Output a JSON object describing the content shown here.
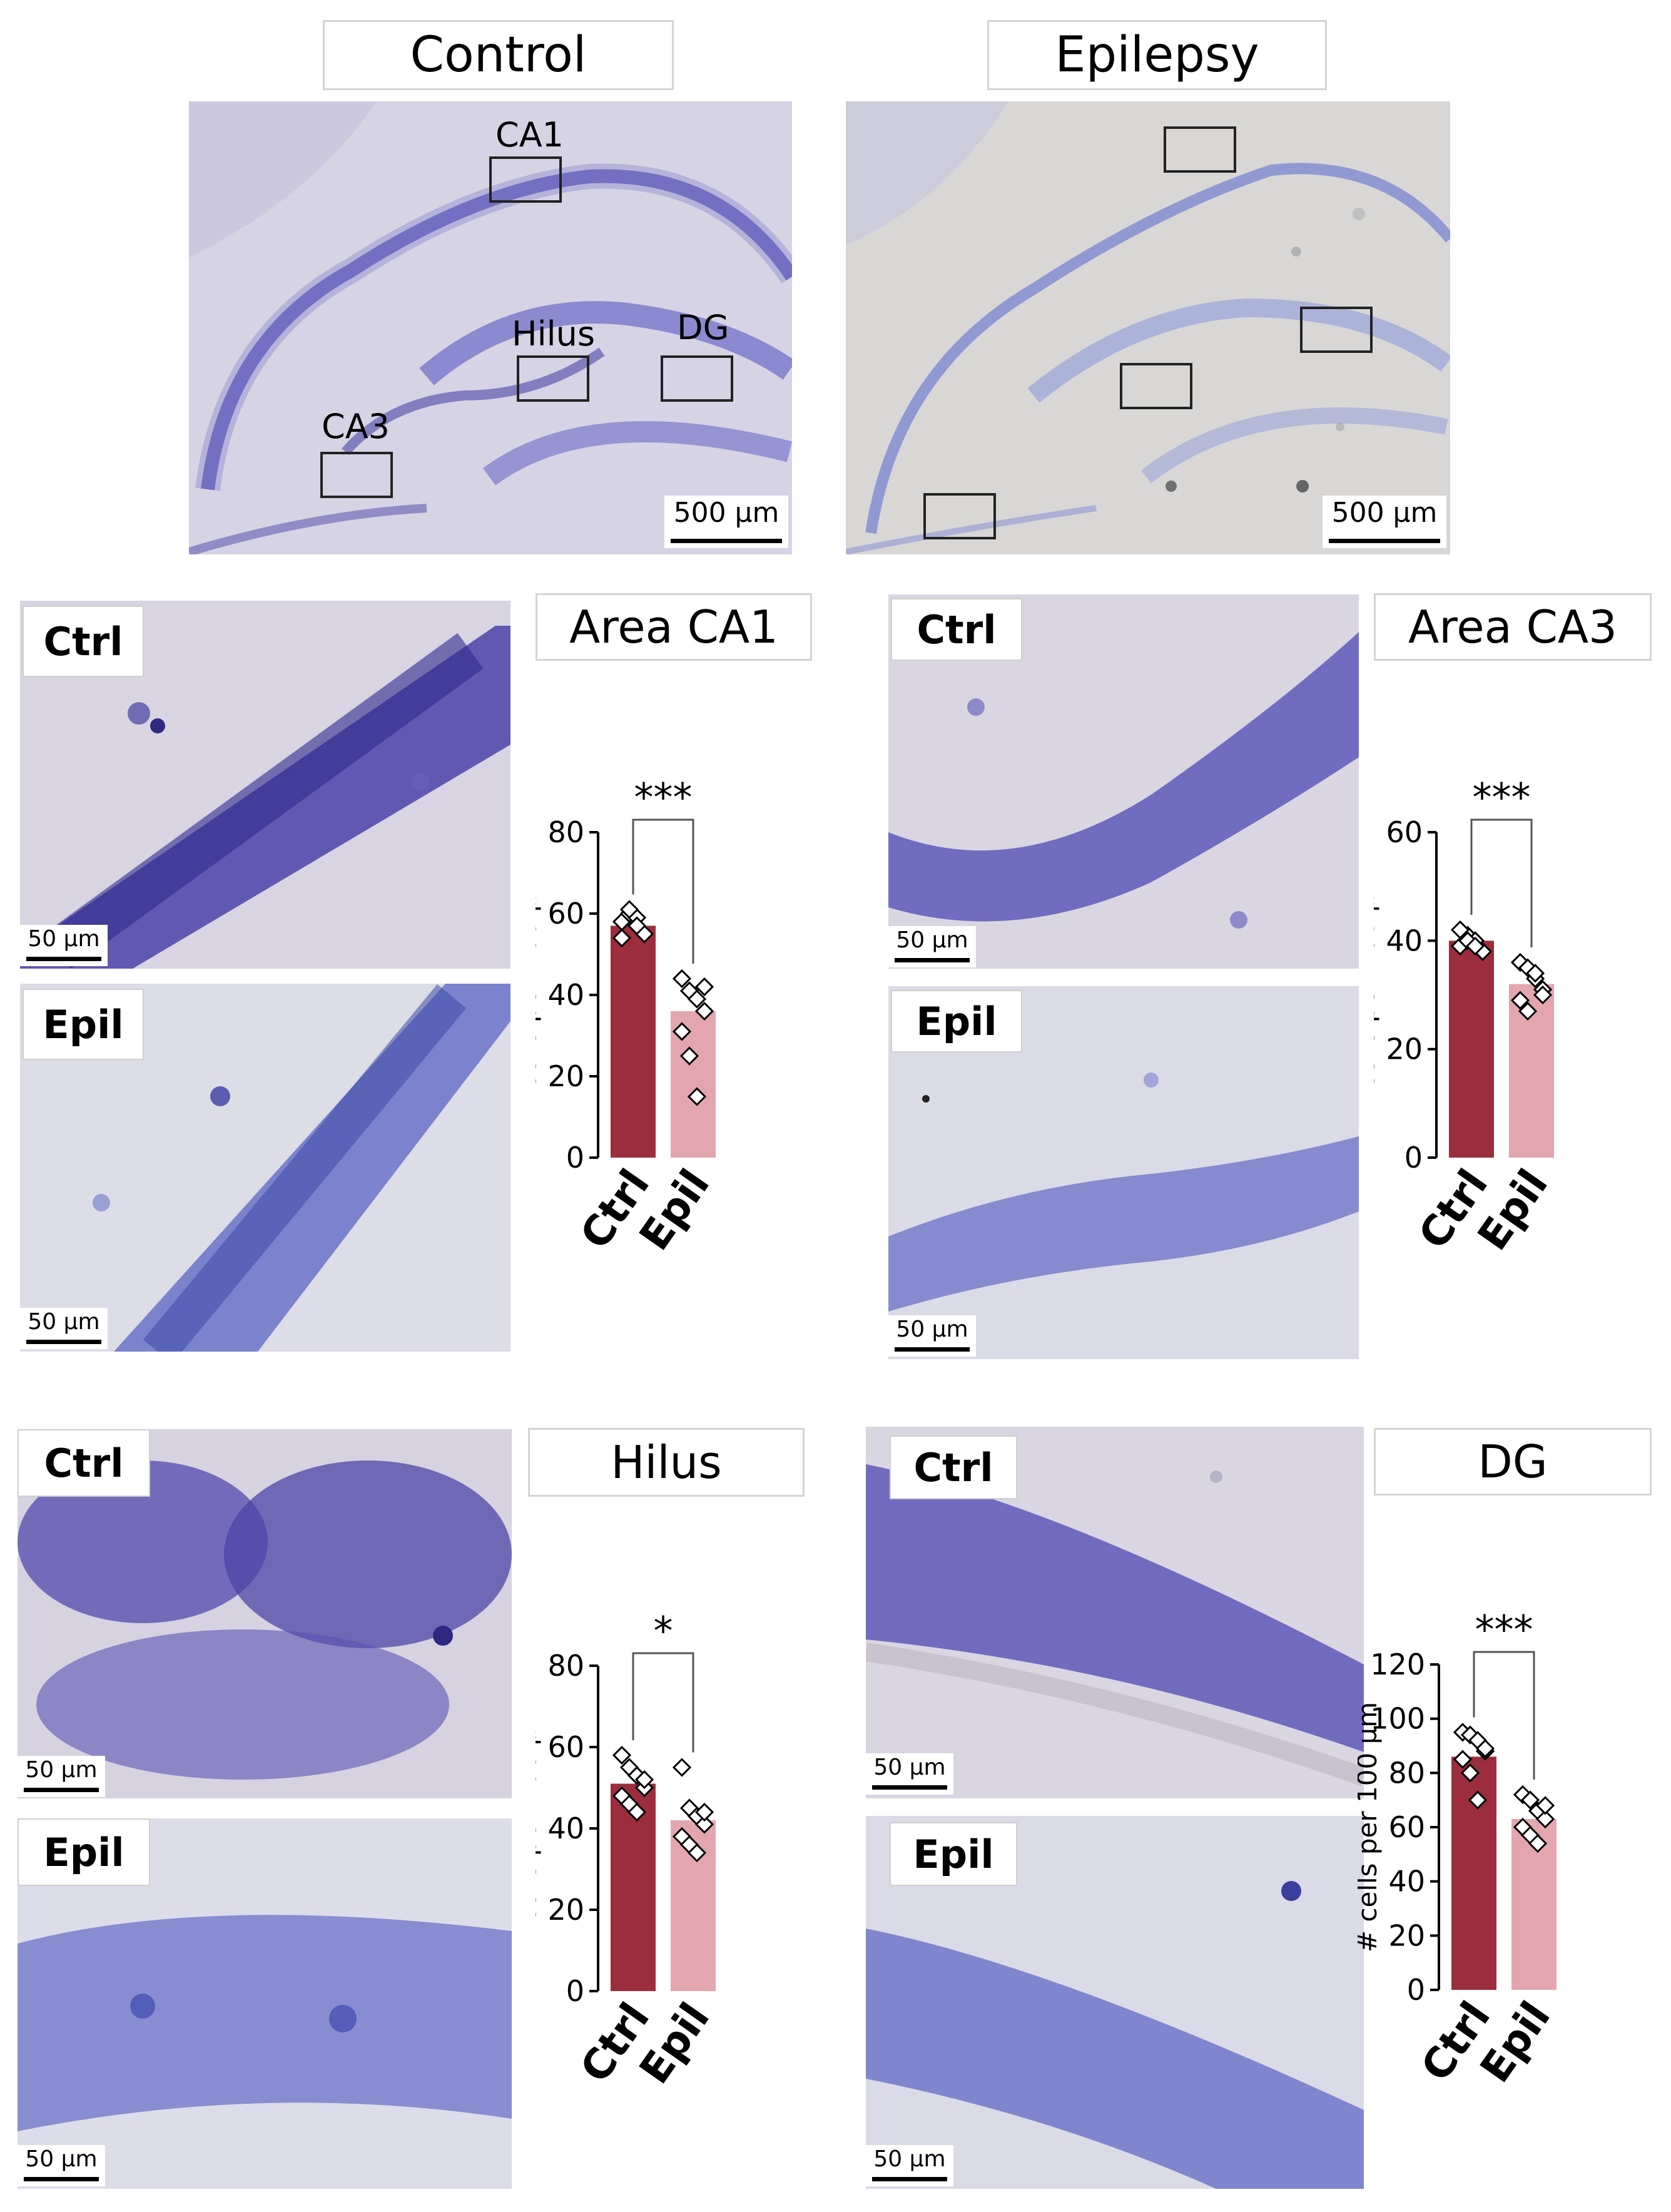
{
  "overview": {
    "control_title": "Control",
    "epilepsy_title": "Epilepsy",
    "region_labels": {
      "ca1": "CA1",
      "hilus": "Hilus",
      "dg": "DG",
      "ca3": "CA3"
    },
    "scale_bar": "500 µm"
  },
  "panels": {
    "row_labels": {
      "ctrl": "Ctrl",
      "epil": "Epil"
    },
    "scale_bar": "50 µm",
    "titles": {
      "ca1": "Area CA1",
      "ca3": "Area CA3",
      "hilus": "Hilus",
      "dg": "DG"
    }
  },
  "colors": {
    "ctrl_bar": "#9b2d3d",
    "epil_bar": "#e3a6ae",
    "nissl_dark": "#3c35a0",
    "nissl_light": "#6f73c9",
    "tissue_bg": "#d7d4e3"
  },
  "chart_data": [
    {
      "type": "bar",
      "title": "Area CA1",
      "ylabel": "# cells per  100 µm",
      "categories": [
        "Ctrl",
        "Epil"
      ],
      "values": [
        57,
        36
      ],
      "points": [
        [
          58,
          60,
          59,
          55,
          54,
          61,
          57
        ],
        [
          44,
          41,
          39,
          36,
          31,
          25,
          15,
          42
        ]
      ],
      "significance": "***",
      "ylim": [
        0,
        80
      ],
      "yticks": [
        0,
        20,
        40,
        60,
        80
      ]
    },
    {
      "type": "bar",
      "title": "Area CA3",
      "ylabel": "# cells per  100 µm",
      "categories": [
        "Ctrl",
        "Epil"
      ],
      "values": [
        40,
        32
      ],
      "points": [
        [
          39,
          41,
          40,
          38,
          42,
          40,
          39
        ],
        [
          36,
          35,
          33,
          31,
          29,
          27,
          34,
          30
        ]
      ],
      "significance": "***",
      "ylim": [
        0,
        60
      ],
      "yticks": [
        0,
        20,
        40,
        60
      ]
    },
    {
      "type": "bar",
      "title": "Hilus",
      "ylabel": "# cells per  100 µm",
      "categories": [
        "Ctrl",
        "Epil"
      ],
      "values": [
        51,
        42
      ],
      "points": [
        [
          58,
          55,
          53,
          50,
          48,
          46,
          44,
          52
        ],
        [
          55,
          45,
          43,
          41,
          38,
          36,
          34,
          44
        ]
      ],
      "significance": "*",
      "ylim": [
        0,
        80
      ],
      "yticks": [
        0,
        20,
        40,
        60,
        80
      ]
    },
    {
      "type": "bar",
      "title": "DG",
      "ylabel": "# cells per  100 µm",
      "categories": [
        "Ctrl",
        "Epil"
      ],
      "values": [
        86,
        63
      ],
      "points": [
        [
          95,
          94,
          92,
          88,
          85,
          80,
          70,
          89
        ],
        [
          72,
          70,
          66,
          63,
          60,
          57,
          54,
          68
        ]
      ],
      "significance": "***",
      "ylim": [
        0,
        120
      ],
      "yticks": [
        0,
        20,
        40,
        60,
        80,
        100,
        120
      ]
    }
  ]
}
